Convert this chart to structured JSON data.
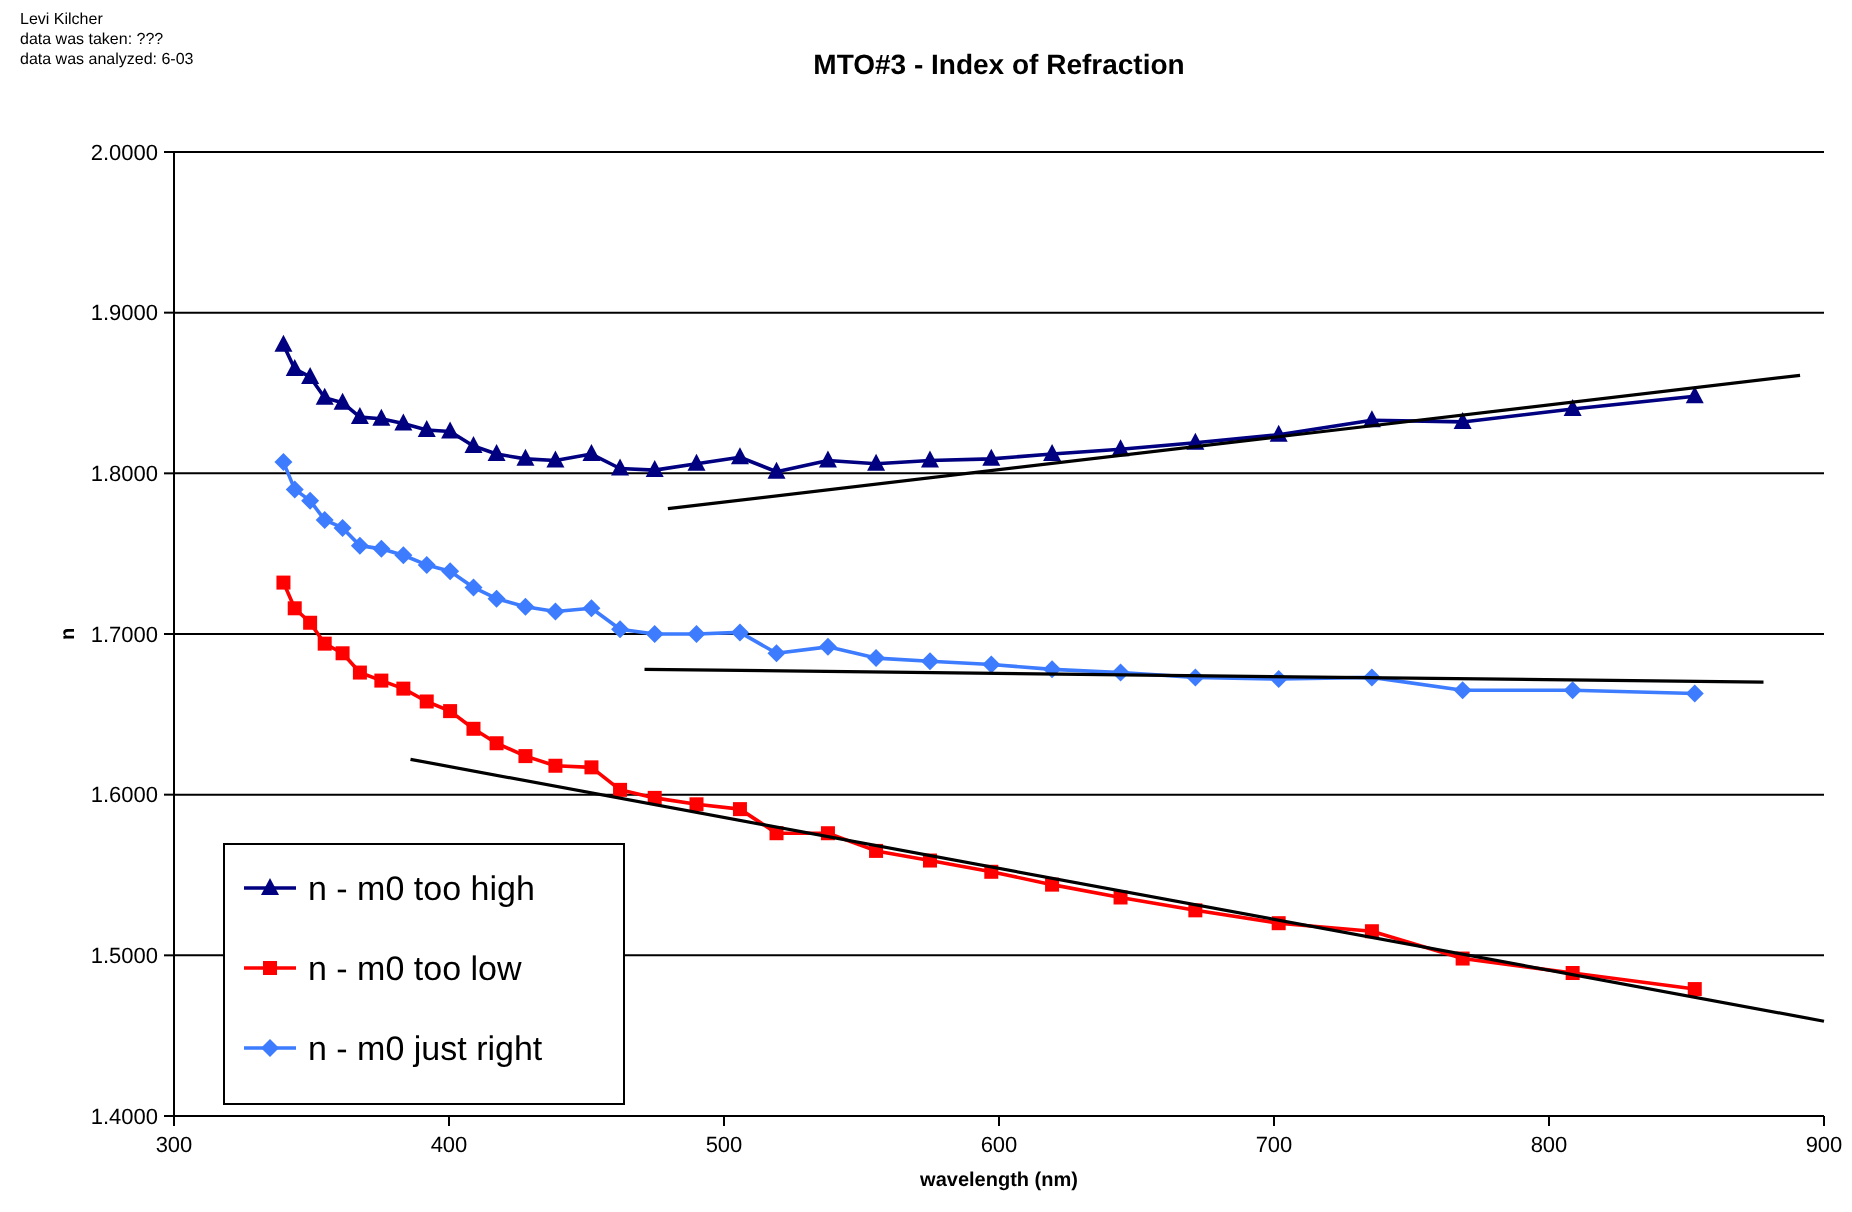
{
  "chart_data": {
    "type": "line",
    "title": "MTO#3  - Index of Refraction",
    "xlabel": "wavelength (nm)",
    "ylabel": "n",
    "annotations": [
      "Levi Kilcher",
      "data was taken: ???",
      "data was analyzed: 6-03"
    ],
    "x": [
      339.8,
      343.9,
      349.5,
      354.8,
      361.3,
      367.6,
      375.4,
      383.4,
      391.9,
      400.4,
      408.9,
      417.3,
      427.8,
      438.7,
      451.8,
      462.2,
      474.8,
      490.0,
      505.8,
      519.1,
      537.8,
      555.3,
      574.9,
      597.2,
      619.3,
      644.2,
      671.4,
      701.7,
      735.6,
      768.6,
      808.6,
      853.0
    ],
    "series": [
      {
        "name": "n - m0 too high",
        "color": "#000080",
        "marker": "triangle",
        "values": [
          1.88,
          1.865,
          1.86,
          1.847,
          1.844,
          1.835,
          1.834,
          1.831,
          1.827,
          1.826,
          1.817,
          1.812,
          1.809,
          1.808,
          1.812,
          1.803,
          1.802,
          1.806,
          1.81,
          1.801,
          1.808,
          1.806,
          1.808,
          1.809,
          1.812,
          1.815,
          1.819,
          1.824,
          1.833,
          1.832,
          1.84,
          1.848
        ]
      },
      {
        "name": "n - m0 too low",
        "color": "#ff0000",
        "marker": "square",
        "values": [
          1.732,
          1.716,
          1.707,
          1.694,
          1.688,
          1.676,
          1.671,
          1.666,
          1.658,
          1.652,
          1.641,
          1.632,
          1.624,
          1.618,
          1.617,
          1.603,
          1.598,
          1.594,
          1.591,
          1.576,
          1.576,
          1.565,
          1.559,
          1.552,
          1.544,
          1.536,
          1.528,
          1.52,
          1.515,
          1.498,
          1.489,
          1.479
        ]
      },
      {
        "name": "n - m0 just right",
        "color": "#3d7bff",
        "marker": "diamond",
        "values": [
          1.807,
          1.79,
          1.783,
          1.771,
          1.766,
          1.755,
          1.753,
          1.749,
          1.743,
          1.739,
          1.729,
          1.722,
          1.717,
          1.714,
          1.716,
          1.703,
          1.7,
          1.7,
          1.701,
          1.688,
          1.692,
          1.685,
          1.683,
          1.681,
          1.678,
          1.676,
          1.673,
          1.672,
          1.673,
          1.665,
          1.665,
          1.663
        ]
      },
      {
        "type": "line",
        "color": "#000000",
        "marker": "none",
        "x": [
          479.6,
          891.3
        ],
        "values": [
          1.778,
          1.861
        ]
      },
      {
        "type": "line",
        "color": "#000000",
        "marker": "none",
        "x": [
          471.1,
          878.0
        ],
        "values": [
          1.678,
          1.67
        ]
      },
      {
        "type": "line",
        "color": "#000000",
        "marker": "none",
        "x": [
          386.0,
          900.0
        ],
        "values": [
          1.622,
          1.459
        ]
      }
    ],
    "xlim": [
      300,
      900
    ],
    "xticks": [
      300,
      400,
      500,
      600,
      700,
      800,
      900
    ],
    "ylim": [
      1.4,
      2.0
    ],
    "yticks": [
      {
        "value": 1.4,
        "label": "1.4000"
      },
      {
        "value": 1.5,
        "label": "1.5000"
      },
      {
        "value": 1.6,
        "label": "1.6000"
      },
      {
        "value": 1.7,
        "label": "1.7000"
      },
      {
        "value": 1.8,
        "label": "1.8000"
      },
      {
        "value": 1.9,
        "label": "1.9000"
      },
      {
        "value": 2.0,
        "label": "2.0000"
      }
    ],
    "grid": "y",
    "legend": "bottom left"
  }
}
